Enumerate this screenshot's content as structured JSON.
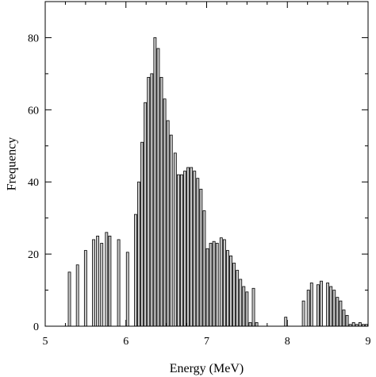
{
  "chart_data": {
    "type": "bar",
    "title": "",
    "xlabel": "Energy (MeV)",
    "ylabel": "Frequency",
    "xlim": [
      5,
      9
    ],
    "ylim": [
      0,
      90
    ],
    "x_ticks": [
      5,
      6,
      7,
      8,
      9
    ],
    "y_ticks": [
      0,
      20,
      40,
      60,
      80
    ],
    "x_minor_step": 0.25,
    "y_minor_step": 10,
    "grid": false,
    "legend": "none",
    "bar_width": 0.03,
    "bar_color": "#c8c8c8",
    "bar_edge_color": "#000000",
    "x": [
      5.3,
      5.4,
      5.5,
      5.6,
      5.65,
      5.7,
      5.76,
      5.8,
      5.91,
      6.02,
      6.12,
      6.16,
      6.2,
      6.24,
      6.28,
      6.32,
      6.36,
      6.4,
      6.44,
      6.48,
      6.52,
      6.56,
      6.61,
      6.65,
      6.69,
      6.73,
      6.77,
      6.81,
      6.85,
      6.89,
      6.93,
      6.97,
      7.01,
      7.05,
      7.09,
      7.13,
      7.18,
      7.22,
      7.26,
      7.3,
      7.34,
      7.38,
      7.42,
      7.46,
      7.5,
      7.54,
      7.58,
      7.62,
      7.98,
      8.2,
      8.26,
      8.3,
      8.38,
      8.42,
      8.5,
      8.54,
      8.58,
      8.62,
      8.66,
      8.7,
      8.74,
      8.78,
      8.82,
      8.86,
      8.9,
      8.94,
      8.98
    ],
    "values": [
      15,
      17,
      21,
      24,
      25,
      23,
      26,
      25,
      24,
      20.5,
      31,
      40,
      51,
      62,
      69,
      70,
      80,
      77,
      69,
      63,
      57,
      53,
      48,
      42,
      42,
      43,
      44,
      44,
      43,
      41,
      38,
      32,
      21.5,
      23,
      23.5,
      23,
      24.5,
      24,
      21,
      19.5,
      17.5,
      15.5,
      13,
      11,
      9.5,
      1,
      10.5,
      1,
      2.5,
      7,
      10,
      12,
      11.5,
      12.5,
      12,
      11,
      10,
      8,
      7,
      4.5,
      3,
      0.5,
      1,
      0.5,
      1,
      0.5,
      0.5
    ]
  }
}
